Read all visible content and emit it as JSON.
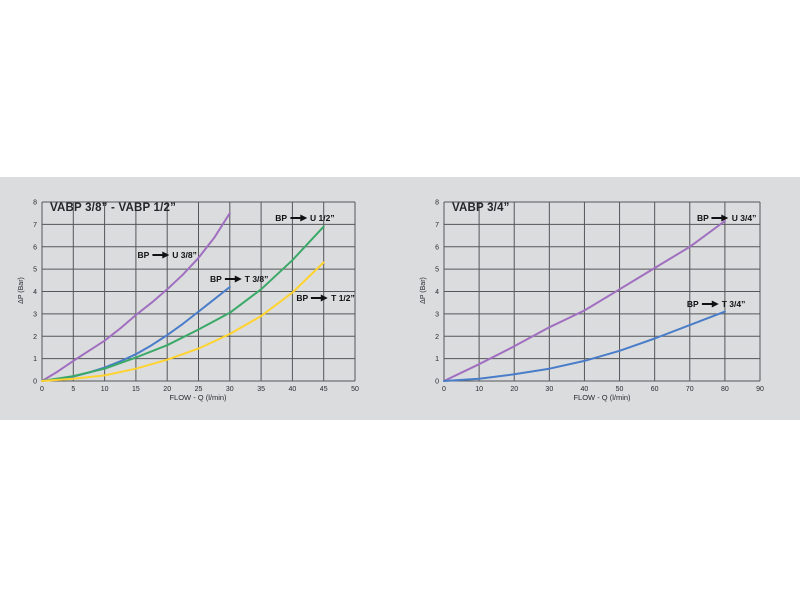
{
  "page": {
    "background_color": "#ffffff",
    "panel_color": "#dbdcde",
    "grid_color": "#55565a",
    "text_color": "#26262a"
  },
  "chart_data": [
    {
      "type": "line",
      "title": "VABP 3/8” - VABP 1/2”",
      "xlabel": "FLOW - Q (l/min)",
      "ylabel": "ΔP (Bar)",
      "xlim": [
        0,
        50
      ],
      "ylim": [
        0,
        8
      ],
      "x_ticks": [
        0,
        5,
        10,
        15,
        20,
        25,
        30,
        35,
        40,
        45,
        50
      ],
      "y_ticks": [
        0,
        1,
        2,
        3,
        4,
        5,
        6,
        7,
        8
      ],
      "grid": true,
      "legend_position": "inline-labels",
      "series": [
        {
          "name": "BP → U 3/8”",
          "color": "#a06fc0",
          "x": [
            0,
            2.5,
            5,
            7.5,
            10,
            12.5,
            15,
            17.5,
            20,
            22.5,
            25,
            27.5,
            30
          ],
          "y": [
            0,
            0.42,
            0.9,
            1.35,
            1.8,
            2.35,
            2.95,
            3.5,
            4.1,
            4.75,
            5.5,
            6.4,
            7.5
          ],
          "label": {
            "prefix": "BP",
            "text": "U 3/8”",
            "at": [
              20.0,
              5.65
            ]
          }
        },
        {
          "name": "BP → T 3/8”",
          "color": "#4a7dc9",
          "x": [
            0,
            2.5,
            5,
            7.5,
            10,
            12.5,
            15,
            17.5,
            20,
            22.5,
            25,
            27.5,
            30
          ],
          "y": [
            0,
            0.08,
            0.2,
            0.38,
            0.6,
            0.88,
            1.2,
            1.6,
            2.05,
            2.55,
            3.1,
            3.65,
            4.2
          ],
          "label": {
            "prefix": "BP",
            "text": "T 3/8”",
            "at": [
              31.5,
              4.55
            ]
          }
        },
        {
          "name": "BP → U 1/2”",
          "color": "#3aa968",
          "x": [
            0,
            5,
            10,
            15,
            20,
            25,
            30,
            35,
            40,
            45
          ],
          "y": [
            0,
            0.22,
            0.55,
            1.05,
            1.6,
            2.3,
            3.05,
            4.1,
            5.4,
            6.9
          ],
          "label": {
            "prefix": "BP",
            "text": "U 1/2”",
            "at": [
              42.0,
              7.3
            ]
          }
        },
        {
          "name": "BP → T 1/2”",
          "color": "#ffd32f",
          "x": [
            0,
            5,
            10,
            15,
            20,
            25,
            30,
            35,
            40,
            45
          ],
          "y": [
            0,
            0.1,
            0.25,
            0.55,
            0.95,
            1.45,
            2.1,
            2.9,
            3.95,
            5.3
          ],
          "label": {
            "prefix": "BP",
            "text": "T 1/2”",
            "at": [
              45.3,
              3.7
            ]
          }
        }
      ]
    },
    {
      "type": "line",
      "title": "VABP 3/4”",
      "xlabel": "FLOW - Q (l/min)",
      "ylabel": "ΔP (Bar)",
      "xlim": [
        0,
        90
      ],
      "ylim": [
        0,
        8
      ],
      "x_ticks": [
        0,
        10,
        20,
        30,
        40,
        50,
        60,
        70,
        80,
        90
      ],
      "y_ticks": [
        0,
        1,
        2,
        3,
        4,
        5,
        6,
        7,
        8
      ],
      "grid": true,
      "legend_position": "inline-labels",
      "series": [
        {
          "name": "BP → U 3/4”",
          "color": "#a06fc0",
          "x": [
            0,
            10,
            20,
            30,
            40,
            50,
            60,
            70,
            80
          ],
          "y": [
            0,
            0.75,
            1.55,
            2.4,
            3.15,
            4.1,
            5.05,
            6.0,
            7.15
          ],
          "label": {
            "prefix": "BP",
            "text": "U 3/4”",
            "at": [
              80.5,
              7.3
            ]
          }
        },
        {
          "name": "BP → T 3/4”",
          "color": "#4a7dc9",
          "x": [
            0,
            10,
            20,
            30,
            40,
            50,
            60,
            70,
            80
          ],
          "y": [
            0,
            0.1,
            0.3,
            0.55,
            0.9,
            1.35,
            1.9,
            2.5,
            3.1
          ],
          "label": {
            "prefix": "BP",
            "text": "T 3/4”",
            "at": [
              77.5,
              3.45
            ]
          }
        }
      ]
    }
  ]
}
